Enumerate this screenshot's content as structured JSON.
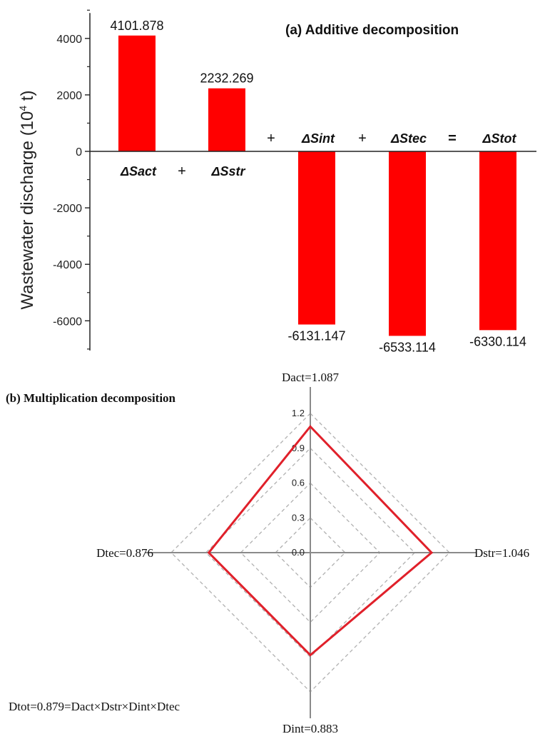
{
  "colors": {
    "bar": "#ff0000",
    "radar_line": "#e0202a",
    "axis": "#222222",
    "spoke": "#8a8a8a",
    "grid": "#b0b0b0"
  },
  "chart_data": [
    {
      "type": "bar",
      "title": "(a) Additive decomposition",
      "ylabel": "Wastewater discharge (10",
      "ylabel_sup": "4",
      "ylabel_end": " t)",
      "ylim": [
        -7000,
        5000
      ],
      "yticks": [
        -6000,
        -4000,
        -2000,
        0,
        2000,
        4000
      ],
      "categories": [
        "ΔSact",
        "ΔSstr",
        "ΔSint",
        "ΔStec",
        "ΔStot"
      ],
      "values": [
        4101.878,
        2232.269,
        -6131.147,
        -6533.114,
        -6330.114
      ],
      "data_labels": [
        "4101.878",
        "2232.269",
        "-6131.147",
        "-6533.114",
        "-6330.114"
      ],
      "operators": [
        "+",
        "+",
        "+",
        "="
      ]
    },
    {
      "type": "radar",
      "title": "(b) Multiplication  decomposition",
      "rlim": [
        0,
        1.2
      ],
      "rticks": [
        "0.0",
        "0.3",
        "0.6",
        "0.9",
        "1.2"
      ],
      "rtick_values": [
        0.0,
        0.3,
        0.6,
        0.9,
        1.2
      ],
      "axes": [
        {
          "name": "Dact",
          "value": 1.087,
          "label": "Dact=1.087"
        },
        {
          "name": "Dstr",
          "value": 1.046,
          "label": "Dstr=1.046"
        },
        {
          "name": "Dint",
          "value": 0.883,
          "label": "Dint=0.883"
        },
        {
          "name": "Dtec",
          "value": 0.876,
          "label": "Dtec=0.876"
        }
      ],
      "note": "Dtot=0.879=Dact×Dstr×Dint×Dtec"
    }
  ]
}
